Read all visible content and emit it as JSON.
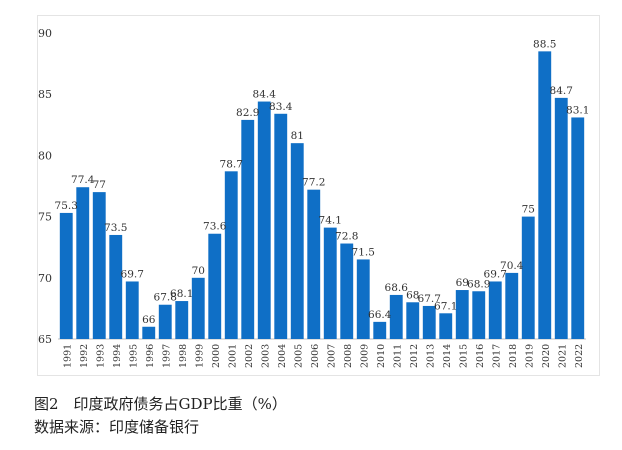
{
  "chart_data": {
    "type": "bar",
    "categories": [
      "1991",
      "1992",
      "1993",
      "1994",
      "1995",
      "1996",
      "1997",
      "1998",
      "1999",
      "2000",
      "2001",
      "2002",
      "2003",
      "2004",
      "2005",
      "2006",
      "2007",
      "2008",
      "2009",
      "2010",
      "2011",
      "2012",
      "2013",
      "2014",
      "2015",
      "2016",
      "2017",
      "2018",
      "2019",
      "2020",
      "2021",
      "2022"
    ],
    "values": [
      75.3,
      77.4,
      77,
      73.5,
      69.7,
      66,
      67.8,
      68.1,
      70,
      73.6,
      78.7,
      82.9,
      84.4,
      83.4,
      81,
      77.2,
      74.1,
      72.8,
      71.5,
      66.4,
      68.6,
      68,
      67.7,
      67.1,
      69,
      68.9,
      69.7,
      70.4,
      75,
      88.5,
      84.7,
      83.1
    ],
    "labels": [
      "75.3",
      "77.4",
      "77",
      "73.5",
      "69.7",
      "66",
      "67.8",
      "68.1",
      "70",
      "73.6",
      "78.7",
      "82.9",
      "84.4",
      "83.4",
      "81",
      "77.2",
      "74.1",
      "72.8",
      "71.5",
      "66.4",
      "68.6",
      "68",
      "67.7",
      "67.1",
      "69",
      "68.9",
      "69.7",
      "70.4",
      "75",
      "88.5",
      "84.7",
      "83.1"
    ],
    "ylim": [
      65,
      90
    ],
    "yticks": [
      "65",
      "70",
      "75",
      "80",
      "85",
      "90"
    ],
    "bar_color": "#0F6FC6",
    "grid": false,
    "legend": "none"
  },
  "caption": {
    "figure": "图2　印度政府债务占GDP比重（%）",
    "source": "数据来源：印度储备银行"
  }
}
